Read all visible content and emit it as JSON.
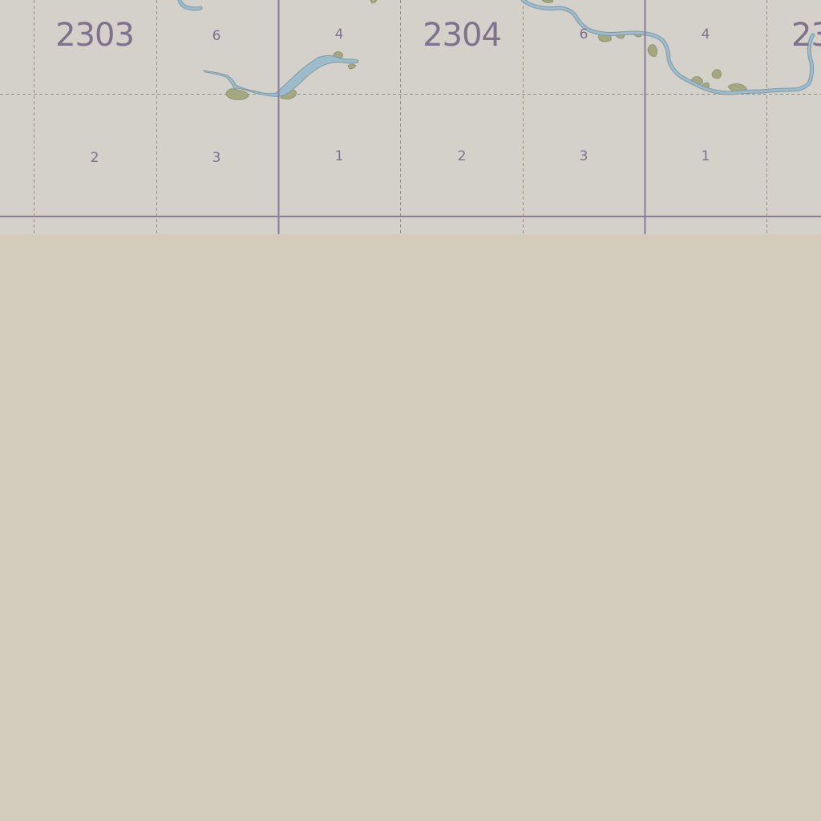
{
  "map": {
    "background_color": "#d3ccbc",
    "tile_color": "#d3d1c9",
    "line_color": "#8a7d99",
    "dashed_line_color": "#a08c80",
    "water_color": "#9cbccb",
    "water_edge_color": "#7f9aaa",
    "wetland_color": "#a4a880",
    "label_color": "#7f728d"
  },
  "townships": [
    {
      "id": "t2303",
      "label": "2303"
    },
    {
      "id": "t2304",
      "label": "2304"
    },
    {
      "id": "t23xx",
      "label": "23"
    }
  ],
  "sections": [
    {
      "id": "s-a-6",
      "label": "6"
    },
    {
      "id": "s-a-4",
      "label": "4"
    },
    {
      "id": "s-b-6",
      "label": "6"
    },
    {
      "id": "s-b-4",
      "label": "4"
    },
    {
      "id": "s-a-2",
      "label": "2"
    },
    {
      "id": "s-a-3",
      "label": "3"
    },
    {
      "id": "s-a-1",
      "label": "1"
    },
    {
      "id": "s-b-2",
      "label": "2"
    },
    {
      "id": "s-b-3",
      "label": "3"
    },
    {
      "id": "s-b-1",
      "label": "1"
    }
  ]
}
